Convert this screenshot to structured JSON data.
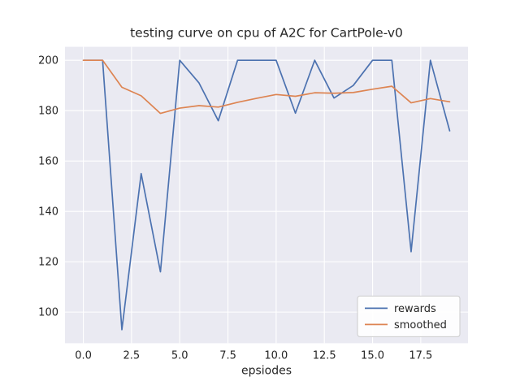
{
  "figure": {
    "title": "testing curve on cpu of A2C for CartPole-v0",
    "xlabel": "epsiodes"
  },
  "chart_data": {
    "type": "line",
    "title": "testing curve on cpu of A2C for CartPole-v0",
    "xlabel": "epsiodes",
    "ylabel": "",
    "x": [
      0,
      1,
      2,
      3,
      4,
      5,
      6,
      7,
      8,
      9,
      10,
      11,
      12,
      13,
      14,
      15,
      16,
      17,
      18,
      19
    ],
    "series": [
      {
        "name": "rewards",
        "color": "#4C72B0",
        "values": [
          200,
          200,
          93,
          155,
          116,
          200,
          191,
          176,
          200,
          200,
          200,
          179,
          200,
          185,
          190,
          200,
          200,
          124,
          200,
          172
        ]
      },
      {
        "name": "smoothed",
        "color": "#DD8452",
        "values": [
          200,
          200,
          189.3,
          185.9,
          178.9,
          181.0,
          182.0,
          181.4,
          183.3,
          184.9,
          186.4,
          185.7,
          187.1,
          186.9,
          187.2,
          188.5,
          189.7,
          183.1,
          184.8,
          183.5
        ]
      }
    ],
    "xlim": [
      -0.95,
      19.95
    ],
    "ylim": [
      87.65,
      205.35
    ],
    "xticks": [
      0.0,
      2.5,
      5.0,
      7.5,
      10.0,
      12.5,
      15.0,
      17.5
    ],
    "xtick_labels": [
      "0.0",
      "2.5",
      "5.0",
      "7.5",
      "10.0",
      "12.5",
      "15.0",
      "17.5"
    ],
    "yticks": [
      100,
      120,
      140,
      160,
      180,
      200
    ],
    "ytick_labels": [
      "100",
      "120",
      "140",
      "160",
      "180",
      "200"
    ],
    "grid": true,
    "legend_position": "lower right",
    "legend_entries": [
      "rewards",
      "smoothed"
    ],
    "plot_bg": "#EAEAF2",
    "grid_color": "#FFFFFF",
    "text_color": "#262626",
    "legend_border": "#CCCCCC",
    "legend_bg": "#FFFFFF"
  }
}
